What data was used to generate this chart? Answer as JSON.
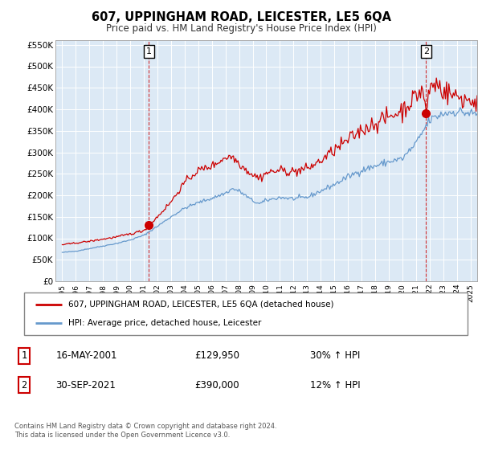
{
  "title": "607, UPPINGHAM ROAD, LEICESTER, LE5 6QA",
  "subtitle": "Price paid vs. HM Land Registry's House Price Index (HPI)",
  "legend_entry1": "607, UPPINGHAM ROAD, LEICESTER, LE5 6QA (detached house)",
  "legend_entry2": "HPI: Average price, detached house, Leicester",
  "sale1_label": "1",
  "sale1_date": "16-MAY-2001",
  "sale1_price": "£129,950",
  "sale1_hpi": "30% ↑ HPI",
  "sale2_label": "2",
  "sale2_date": "30-SEP-2021",
  "sale2_price": "£390,000",
  "sale2_hpi": "12% ↑ HPI",
  "footnote": "Contains HM Land Registry data © Crown copyright and database right 2024.\nThis data is licensed under the Open Government Licence v3.0.",
  "red_color": "#cc0000",
  "blue_color": "#6699cc",
  "chart_bg": "#dce9f5",
  "grid_color": "#ffffff",
  "ylim": [
    0,
    560000
  ],
  "yticks": [
    0,
    50000,
    100000,
    150000,
    200000,
    250000,
    300000,
    350000,
    400000,
    450000,
    500000,
    550000
  ],
  "ytick_labels": [
    "£0",
    "£50K",
    "£100K",
    "£150K",
    "£200K",
    "£250K",
    "£300K",
    "£350K",
    "£400K",
    "£450K",
    "£500K",
    "£550K"
  ],
  "sale1_year": 2001.37,
  "sale1_value": 129950,
  "sale2_year": 2021.75,
  "sale2_value": 390000,
  "xmin": 1995.0,
  "xmax": 2025.5
}
